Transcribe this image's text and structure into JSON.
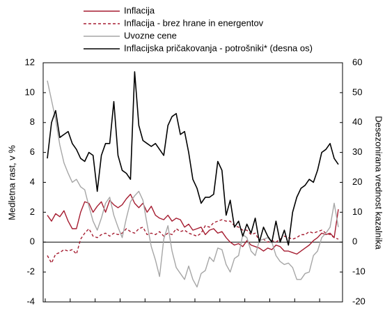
{
  "chart_data": {
    "type": "line",
    "ylabel": "Medletna rast, v %",
    "y2label": "Desezonirana vrednost kazalnika",
    "categories": [
      null,
      null,
      null,
      null,
      null,
      null,
      null,
      null,
      null,
      null,
      null,
      null,
      null,
      null,
      null,
      null,
      null,
      null,
      null,
      null,
      null,
      null,
      null,
      null,
      null,
      null,
      null,
      null,
      null,
      null,
      null,
      null,
      null,
      null,
      null,
      null,
      null,
      null,
      null,
      null,
      null,
      null,
      null,
      null,
      null,
      null,
      null,
      null,
      null,
      null,
      null,
      null,
      null,
      null,
      null,
      null,
      null,
      null,
      null,
      null,
      null,
      null,
      null,
      null,
      null,
      null,
      null,
      null,
      null,
      null,
      null
    ],
    "ylim": [
      -4,
      12
    ],
    "yticks": [
      -4,
      -2,
      0,
      2,
      4,
      6,
      8,
      10,
      12
    ],
    "y2lim": [
      -20,
      60
    ],
    "y2ticks": [
      -20,
      -10,
      0,
      10,
      20,
      30,
      40,
      50,
      60
    ],
    "legend": "top",
    "series": [
      {
        "name": "Inflacija",
        "color": "#a51c30",
        "style": "solid",
        "values": [
          1.8,
          1.4,
          1.9,
          1.7,
          2.1,
          1.4,
          0.9,
          0.9,
          2.0,
          2.7,
          2.6,
          2.0,
          2.4,
          2.7,
          2.0,
          2.8,
          2.5,
          2.3,
          2.5,
          2.9,
          3.2,
          2.6,
          2.3,
          2.6,
          2.0,
          2.4,
          1.8,
          1.6,
          1.5,
          1.8,
          1.4,
          1.6,
          1.5,
          1.0,
          1.2,
          0.8,
          0.9,
          1.0,
          0.5,
          0.8,
          0.9,
          0.6,
          0.7,
          0.3,
          0.0,
          -0.2,
          -0.1,
          -0.3,
          0.1,
          -0.2,
          -0.3,
          -0.4,
          -0.6,
          -0.4,
          -0.5,
          -0.2,
          -0.3,
          -0.6,
          -0.6,
          -0.7,
          -0.8,
          -0.6,
          -0.4,
          -0.2,
          0.1,
          0.3,
          0.6,
          0.5,
          0.6,
          0.3,
          2.2
        ]
      },
      {
        "name": "Inflacija - brez hrane in energentov",
        "color": "#a51c30",
        "style": "dashed",
        "values": [
          -0.9,
          -1.4,
          -0.8,
          -0.7,
          -0.5,
          -0.6,
          -0.5,
          -0.8,
          0.2,
          0.6,
          0.9,
          0.4,
          0.3,
          0.5,
          0.6,
          0.4,
          0.6,
          0.5,
          0.6,
          0.9,
          0.7,
          0.6,
          0.9,
          1.0,
          0.5,
          0.6,
          0.5,
          0.7,
          0.4,
          0.6,
          0.5,
          0.9,
          0.7,
          0.8,
          0.6,
          0.5,
          0.4,
          0.6,
          1.1,
          1.0,
          1.3,
          1.4,
          1.5,
          1.4,
          1.4,
          1.1,
          1.0,
          0.8,
          0.8,
          0.5,
          0.6,
          0.1,
          0.2,
          0.0,
          0.1,
          0.0,
          0.2,
          0.4,
          0.3,
          0.2,
          0.3,
          0.5,
          0.5,
          0.7,
          0.6,
          0.7,
          0.8,
          0.6,
          0.5,
          0.3,
          0.2
        ]
      },
      {
        "name": "Uvozne cene",
        "color": "#a6a6a6",
        "style": "solid",
        "values": [
          10.8,
          9.5,
          8.2,
          6.5,
          5.3,
          4.6,
          4.0,
          4.2,
          3.7,
          3.5,
          2.4,
          1.4,
          0.8,
          1.6,
          2.6,
          3.0,
          1.8,
          1.0,
          0.3,
          1.6,
          2.7,
          3.1,
          3.4,
          2.8,
          1.2,
          -0.3,
          -1.2,
          -2.3,
          0.2,
          1.1,
          -0.6,
          -1.7,
          -2.1,
          -2.5,
          -1.6,
          -2.5,
          -3.0,
          -2.1,
          -1.9,
          -1.0,
          -1.3,
          -0.4,
          -0.5,
          -1.5,
          -2.0,
          -1.1,
          -0.9,
          0.5,
          0.3,
          -0.6,
          -0.9,
          0.1,
          0.2,
          0.3,
          0.0,
          -0.9,
          -1.3,
          -1.5,
          -1.4,
          -1.7,
          -2.5,
          -2.5,
          -2.1,
          -2.0,
          -0.9,
          -0.6,
          0.3,
          0.6,
          1.0,
          2.6,
          1.0
        ]
      },
      {
        "name": "Inflacijska pričakovanja - potrošniki* (desna os)",
        "color": "#000000",
        "style": "solid",
        "axis": "y2",
        "values": [
          28,
          40,
          44,
          35,
          36,
          37,
          33,
          31,
          28,
          27,
          30,
          29,
          17,
          29,
          33,
          33,
          47,
          29,
          24,
          23,
          21,
          57,
          39,
          34,
          33,
          32,
          33,
          31,
          29,
          39,
          42,
          43,
          36,
          37,
          30,
          21,
          18,
          13,
          15,
          15,
          16,
          27,
          24,
          9,
          14,
          5,
          7,
          2,
          6,
          3,
          8,
          0,
          5,
          2,
          0,
          7,
          0,
          4,
          -1,
          10,
          15,
          18,
          19,
          21,
          20,
          24,
          30,
          31,
          33,
          28,
          26
        ]
      }
    ]
  }
}
